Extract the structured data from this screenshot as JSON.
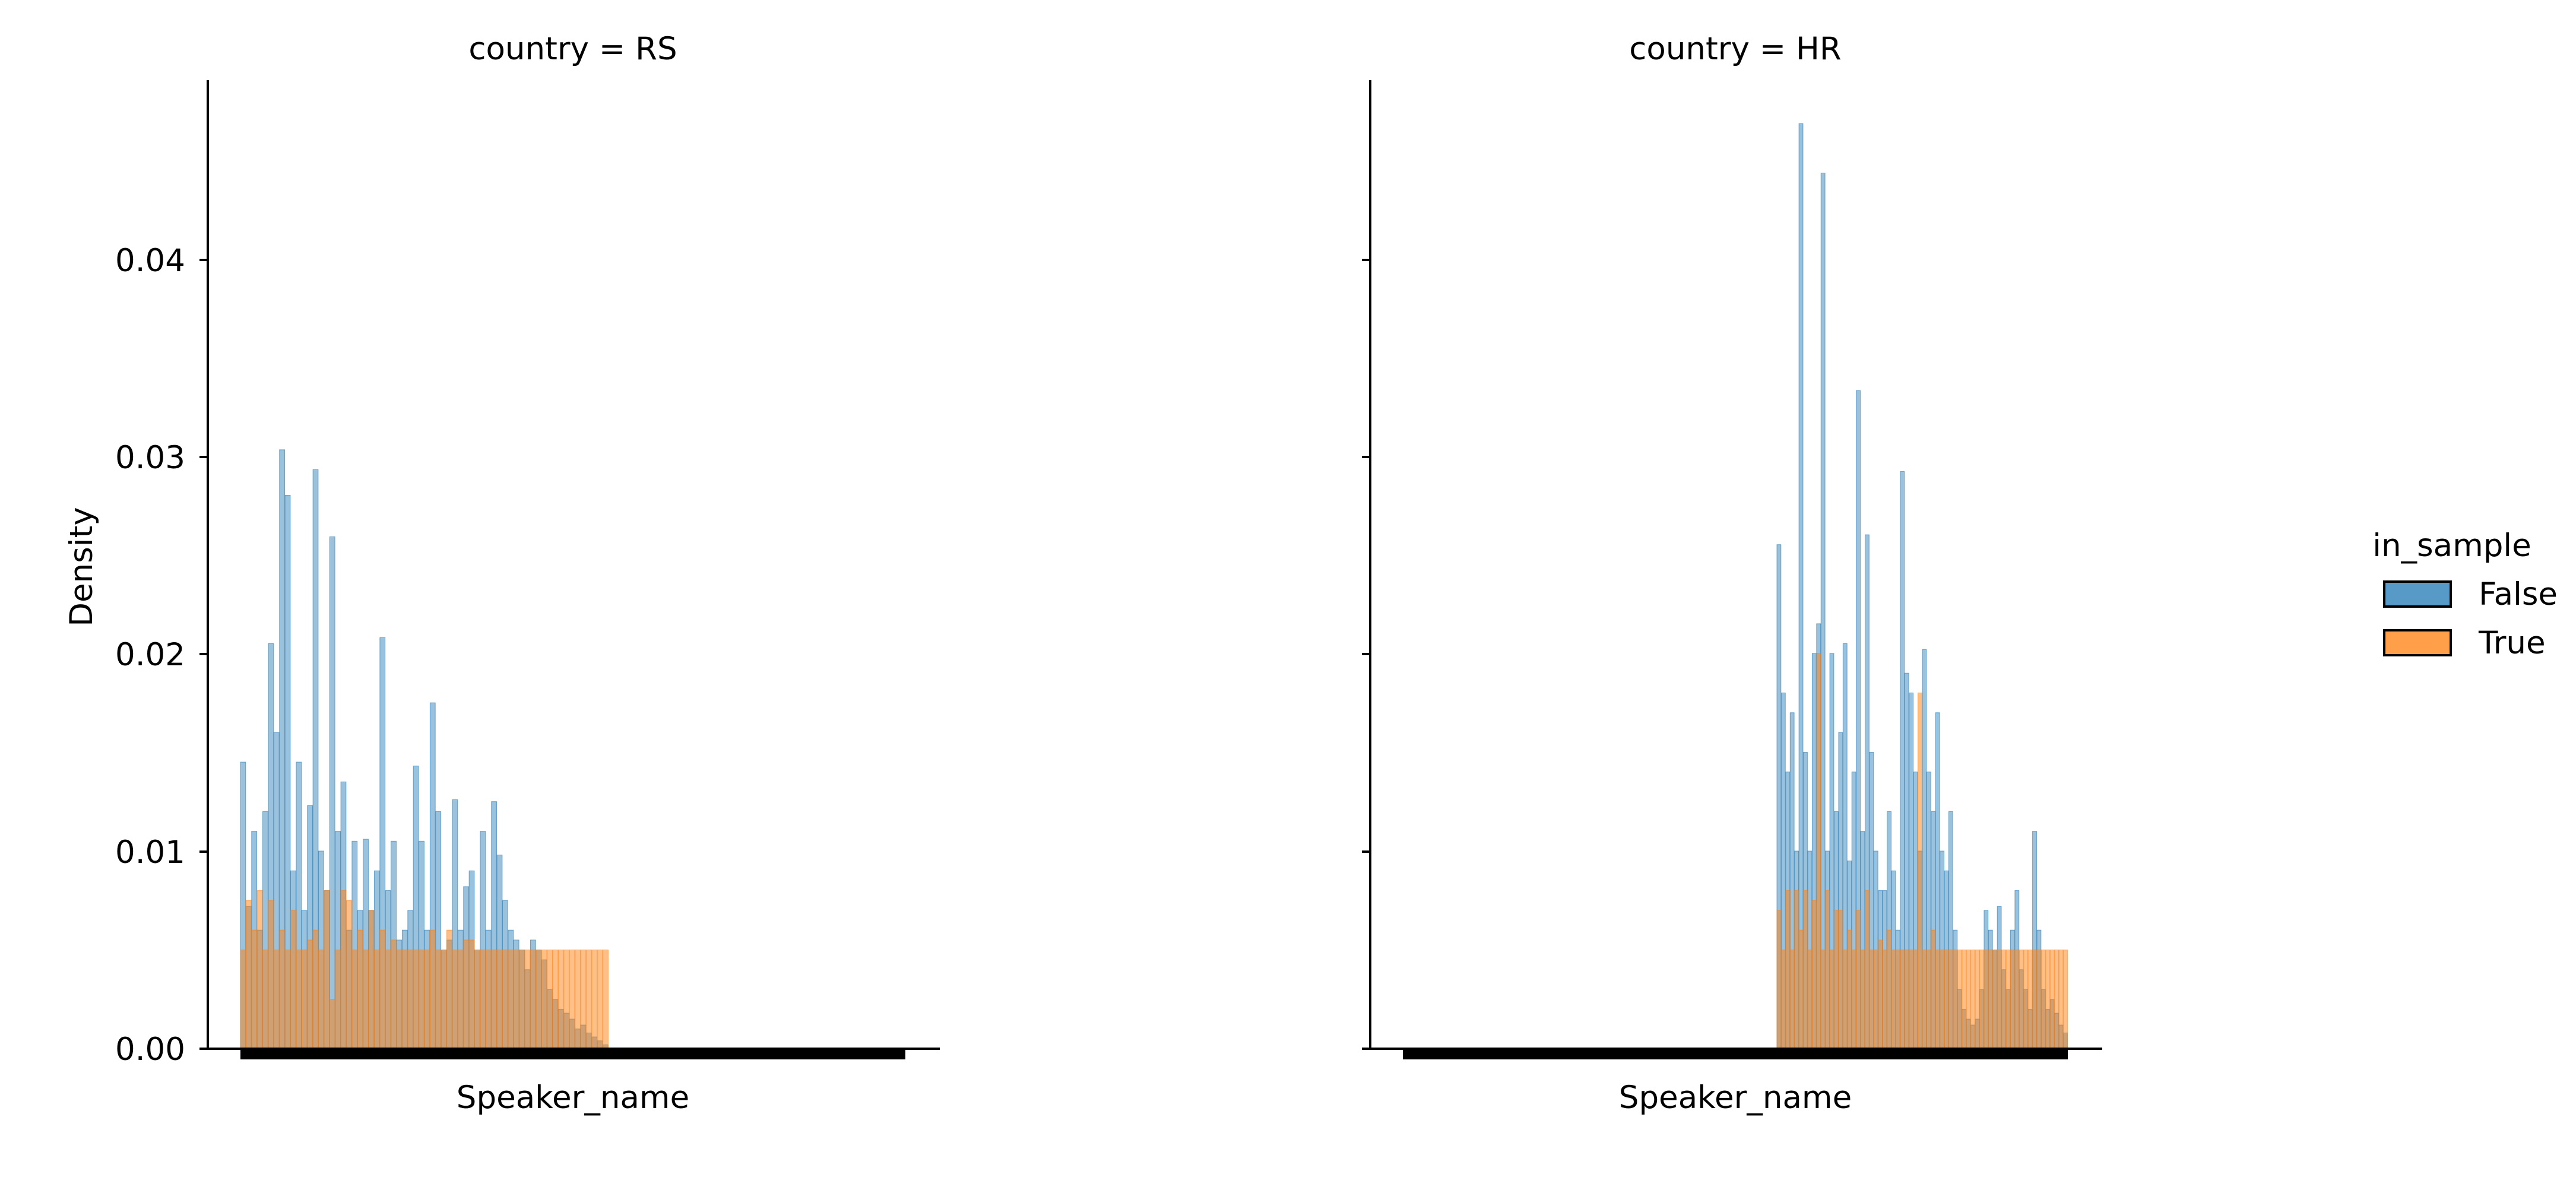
{
  "chart_data": [
    {
      "type": "bar",
      "title": "country = RS",
      "xlabel": "Speaker_name",
      "ylabel": "Density",
      "ylim": [
        0,
        0.049
      ],
      "yticks": [
        "0.00",
        "0.01",
        "0.02",
        "0.03",
        "0.04"
      ],
      "grid": false,
      "series": [
        {
          "name": "False",
          "values": [
            0.0145,
            0.0072,
            0.011,
            0.006,
            0.012,
            0.0205,
            0.016,
            0.0303,
            0.028,
            0.009,
            0.0145,
            0.007,
            0.0123,
            0.0293,
            0.01,
            0.008,
            0.0259,
            0.011,
            0.0135,
            0.006,
            0.0105,
            0.007,
            0.0106,
            0.007,
            0.009,
            0.0208,
            0.008,
            0.0105,
            0.0055,
            0.006,
            0.007,
            0.0143,
            0.0105,
            0.006,
            0.0175,
            0.012,
            0.005,
            0.0055,
            0.0126,
            0.006,
            0.0082,
            0.009,
            0.005,
            0.011,
            0.006,
            0.0125,
            0.0098,
            0.0075,
            0.006,
            0.0055,
            0.005,
            0.004,
            0.0055,
            0.005,
            0.0045,
            0.003,
            0.0025,
            0.002,
            0.0018,
            0.0015,
            0.001,
            0.0012,
            0.0008,
            0.0006,
            0.0004,
            0.0002
          ]
        },
        {
          "name": "True",
          "values": [
            0.005,
            0.0075,
            0.006,
            0.008,
            0.005,
            0.0075,
            0.005,
            0.006,
            0.005,
            0.007,
            0.005,
            0.005,
            0.0055,
            0.006,
            0.005,
            0.008,
            0.0025,
            0.005,
            0.008,
            0.0075,
            0.005,
            0.006,
            0.005,
            0.007,
            0.005,
            0.006,
            0.005,
            0.0055,
            0.005,
            0.005,
            0.005,
            0.005,
            0.005,
            0.005,
            0.006,
            0.005,
            0.005,
            0.006,
            0.005,
            0.005,
            0.0055,
            0.0055,
            0.005,
            0.005,
            0.005,
            0.005,
            0.005,
            0.005,
            0.005,
            0.005,
            0.005,
            0.005,
            0.005,
            0.005,
            0.005,
            0.005,
            0.005,
            0.005,
            0.005,
            0.005,
            0.005,
            0.005,
            0.005,
            0.005,
            0.005,
            0.005
          ]
        }
      ]
    },
    {
      "type": "bar",
      "title": "country = HR",
      "xlabel": "Speaker_name",
      "ylabel": "",
      "ylim": [
        0,
        0.049
      ],
      "grid": false,
      "series": [
        {
          "name": "False",
          "values": [
            0.0255,
            0.018,
            0.014,
            0.017,
            0.01,
            0.0468,
            0.015,
            0.01,
            0.02,
            0.0215,
            0.0443,
            0.01,
            0.02,
            0.012,
            0.016,
            0.0205,
            0.0095,
            0.014,
            0.0333,
            0.011,
            0.026,
            0.015,
            0.01,
            0.008,
            0.008,
            0.012,
            0.009,
            0.006,
            0.0292,
            0.019,
            0.018,
            0.014,
            0.01,
            0.0202,
            0.014,
            0.012,
            0.017,
            0.01,
            0.009,
            0.012,
            0.006,
            0.003,
            0.002,
            0.0015,
            0.0012,
            0.0015,
            0.003,
            0.007,
            0.006,
            0.005,
            0.0072,
            0.004,
            0.003,
            0.006,
            0.008,
            0.004,
            0.003,
            0.002,
            0.011,
            0.006,
            0.003,
            0.002,
            0.0025,
            0.0018,
            0.0012,
            0.0008
          ]
        },
        {
          "name": "True",
          "values": [
            0.007,
            0.005,
            0.008,
            0.005,
            0.008,
            0.006,
            0.008,
            0.005,
            0.0075,
            0.02,
            0.005,
            0.008,
            0.005,
            0.007,
            0.007,
            0.005,
            0.006,
            0.005,
            0.007,
            0.005,
            0.008,
            0.005,
            0.005,
            0.0055,
            0.005,
            0.006,
            0.005,
            0.005,
            0.005,
            0.005,
            0.005,
            0.005,
            0.018,
            0.005,
            0.005,
            0.006,
            0.005,
            0.005,
            0.005,
            0.005,
            0.005,
            0.005,
            0.005,
            0.005,
            0.005,
            0.005,
            0.005,
            0.005,
            0.005,
            0.005,
            0.005,
            0.005,
            0.005,
            0.005,
            0.005,
            0.005,
            0.005,
            0.005,
            0.005,
            0.005,
            0.005,
            0.005,
            0.005,
            0.005,
            0.005,
            0.005
          ]
        }
      ]
    }
  ],
  "legend": {
    "title": "in_sample",
    "placement": "right",
    "items": [
      {
        "label": "False",
        "color": "#1f77b4"
      },
      {
        "label": "True",
        "color": "#ff7f0e"
      }
    ]
  }
}
